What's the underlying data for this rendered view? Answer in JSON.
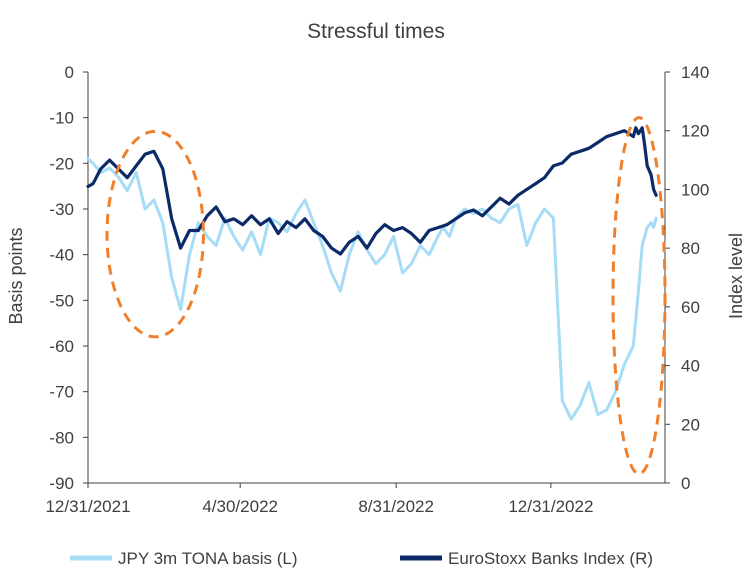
{
  "chart_data": {
    "type": "line",
    "title": "Stressful times",
    "ylabel_left": "Basis points",
    "ylabel_right": "Index level",
    "ylim_left": [
      -90,
      0
    ],
    "ylim_right": [
      0,
      140
    ],
    "yticks_left": [
      "0",
      "-10",
      "-20",
      "-30",
      "-40",
      "-50",
      "-60",
      "-70",
      "-80",
      "-90"
    ],
    "yticks_right": [
      "140",
      "120",
      "100",
      "80",
      "60",
      "40",
      "20",
      "0"
    ],
    "xlim": [
      "2021-12-31",
      "2023-03-31"
    ],
    "xticks": [
      "12/31/2021",
      "4/30/2022",
      "8/31/2022",
      "12/31/2022"
    ],
    "grid": false,
    "legend_position": "bottom",
    "colors": {
      "tona": "#a6dcf5",
      "banks": "#0b2a67",
      "highlight": "#f07f2c",
      "axis": "#404040"
    },
    "series": [
      {
        "name": "JPY 3m TONA basis (L)",
        "axis": "left",
        "x": [
          "2021-12-31",
          "2022-01-04",
          "2022-01-10",
          "2022-01-17",
          "2022-01-24",
          "2022-01-31",
          "2022-02-07",
          "2022-02-14",
          "2022-02-21",
          "2022-02-28",
          "2022-03-07",
          "2022-03-14",
          "2022-03-21",
          "2022-03-28",
          "2022-04-04",
          "2022-04-11",
          "2022-04-18",
          "2022-04-25",
          "2022-05-02",
          "2022-05-09",
          "2022-05-16",
          "2022-05-23",
          "2022-05-30",
          "2022-06-06",
          "2022-06-13",
          "2022-06-20",
          "2022-06-27",
          "2022-07-04",
          "2022-07-11",
          "2022-07-18",
          "2022-07-25",
          "2022-08-01",
          "2022-08-08",
          "2022-08-15",
          "2022-08-22",
          "2022-08-29",
          "2022-09-05",
          "2022-09-12",
          "2022-09-19",
          "2022-09-26",
          "2022-10-03",
          "2022-10-07",
          "2022-10-12",
          "2022-10-17",
          "2022-10-24",
          "2022-10-31",
          "2022-11-07",
          "2022-11-14",
          "2022-11-21",
          "2022-11-28",
          "2022-12-05",
          "2022-12-12",
          "2022-12-19",
          "2022-12-26",
          "2023-01-02",
          "2023-01-09",
          "2023-01-16",
          "2023-01-23",
          "2023-01-30",
          "2023-02-06",
          "2023-02-13",
          "2023-02-20",
          "2023-02-27",
          "2023-03-06",
          "2023-03-10",
          "2023-03-13",
          "2023-03-15",
          "2023-03-17",
          "2023-03-20",
          "2023-03-22",
          "2023-03-24"
        ],
        "values": [
          -19,
          -20,
          -22,
          -21,
          -23,
          -26,
          -22,
          -30,
          -28,
          -33,
          -45,
          -52,
          -40,
          -33,
          -36,
          -38,
          -32,
          -36,
          -39,
          -35,
          -40,
          -32,
          -33,
          -35,
          -31,
          -28,
          -33,
          -38,
          -44,
          -48,
          -40,
          -35,
          -39,
          -42,
          -40,
          -36,
          -44,
          -42,
          -38,
          -40,
          -36,
          -34,
          -36,
          -32,
          -30,
          -31,
          -30,
          -32,
          -33,
          -30,
          -29,
          -38,
          -33,
          -30,
          -32,
          -72,
          -76,
          -73,
          -68,
          -75,
          -74,
          -70,
          -64,
          -60,
          -48,
          -38,
          -36,
          -34,
          -33,
          -34,
          -32
        ]
      },
      {
        "name": "EuroStoxx Banks Index (R)",
        "axis": "right",
        "x": [
          "2021-12-31",
          "2022-01-04",
          "2022-01-10",
          "2022-01-17",
          "2022-01-24",
          "2022-01-31",
          "2022-02-07",
          "2022-02-14",
          "2022-02-21",
          "2022-02-28",
          "2022-03-07",
          "2022-03-14",
          "2022-03-21",
          "2022-03-28",
          "2022-04-04",
          "2022-04-11",
          "2022-04-18",
          "2022-04-25",
          "2022-05-02",
          "2022-05-09",
          "2022-05-16",
          "2022-05-23",
          "2022-05-30",
          "2022-06-06",
          "2022-06-13",
          "2022-06-20",
          "2022-06-27",
          "2022-07-04",
          "2022-07-11",
          "2022-07-18",
          "2022-07-25",
          "2022-08-01",
          "2022-08-08",
          "2022-08-15",
          "2022-08-22",
          "2022-08-29",
          "2022-09-05",
          "2022-09-12",
          "2022-09-19",
          "2022-09-26",
          "2022-10-03",
          "2022-10-10",
          "2022-10-17",
          "2022-10-24",
          "2022-10-31",
          "2022-11-07",
          "2022-11-14",
          "2022-11-21",
          "2022-11-28",
          "2022-12-05",
          "2022-12-12",
          "2022-12-19",
          "2022-12-26",
          "2023-01-02",
          "2023-01-09",
          "2023-01-16",
          "2023-01-23",
          "2023-01-30",
          "2023-02-06",
          "2023-02-13",
          "2023-02-20",
          "2023-02-27",
          "2023-03-06",
          "2023-03-08",
          "2023-03-10",
          "2023-03-13",
          "2023-03-15",
          "2023-03-17",
          "2023-03-20",
          "2023-03-22",
          "2023-03-24"
        ],
        "values": [
          101,
          102,
          107,
          110,
          107,
          104,
          108,
          112,
          113,
          107,
          90,
          80,
          86,
          86,
          91,
          94,
          89,
          90,
          88,
          91,
          88,
          90,
          85,
          89,
          87,
          90,
          86,
          84,
          80,
          78,
          82,
          84,
          80,
          85,
          88,
          86,
          87,
          85,
          82,
          86,
          87,
          88,
          90,
          92,
          93,
          91,
          94,
          97,
          95,
          98,
          100,
          102,
          104,
          108,
          109,
          112,
          113,
          114,
          116,
          118,
          119,
          120,
          118,
          121,
          119,
          121,
          115,
          108,
          105,
          100,
          98
        ]
      }
    ],
    "annotations": [
      {
        "type": "dashed-ellipse",
        "x_range": [
          "2022-01-15",
          "2022-04-01"
        ],
        "y_range_left": [
          -58,
          -13
        ]
      },
      {
        "type": "dashed-ellipse",
        "x_range": [
          "2023-02-18",
          "2023-03-31"
        ],
        "y_range_left": [
          -88,
          -10
        ]
      }
    ]
  }
}
